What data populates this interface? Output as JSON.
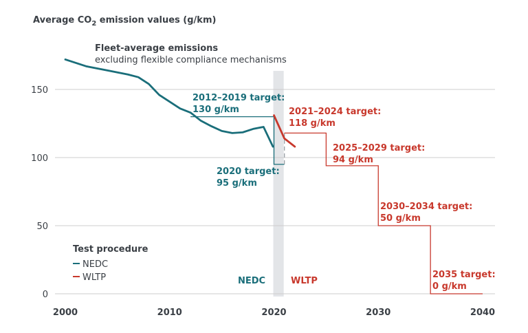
{
  "chart_data": {
    "type": "line",
    "title": "Average CO",
    "title_sub": "2",
    "title_rest": " emission values (g/km)",
    "ylabel": "Average CO2 emission values (g/km)",
    "xlabel": "",
    "xlim": [
      2000,
      2040
    ],
    "ylim": [
      0,
      175
    ],
    "xticks": [
      2000,
      2010,
      2020,
      2030,
      2040
    ],
    "yticks": [
      0,
      50,
      100,
      150
    ],
    "grid": true,
    "note": {
      "heading": "Fleet-average emissions",
      "subheading": "excluding flexible compliance mechanisms"
    },
    "colors": {
      "NEDC": "#1a6e7a",
      "WLTP": "#c8382c",
      "band": "#e3e5e8",
      "grid": "#cccccc",
      "text": "#3a3f45"
    },
    "transition_band": [
      2020,
      2021
    ],
    "series": [
      {
        "name": "NEDC",
        "x": [
          2000,
          2002,
          2004,
          2006,
          2007,
          2008,
          2009,
          2010,
          2011,
          2012,
          2013,
          2014,
          2015,
          2016,
          2017,
          2018,
          2019,
          2019.9
        ],
        "values": [
          172,
          167,
          164,
          161,
          159,
          154,
          146,
          141,
          136,
          133,
          127,
          123,
          119.5,
          118,
          118.5,
          121,
          122.5,
          108
        ]
      },
      {
        "name": "WLTP",
        "x": [
          2020,
          2021,
          2022
        ],
        "values": [
          131,
          114,
          108
        ]
      }
    ],
    "targets": [
      {
        "label_line1": "2012–2019 target:",
        "label_line2": "130 g/km",
        "from": 2012,
        "to": 2020,
        "value": 130,
        "procedure": "NEDC"
      },
      {
        "label_line1": "2020 target:",
        "label_line2": "95 g/km",
        "from": 2020,
        "to": 2021,
        "value": 95,
        "procedure": "NEDC"
      },
      {
        "label_line1": "2021–2024 target:",
        "label_line2": "118 g/km",
        "from": 2021,
        "to": 2025,
        "value": 118,
        "procedure": "WLTP"
      },
      {
        "label_line1": "2025–2029 target:",
        "label_line2": "94 g/km",
        "from": 2025,
        "to": 2030,
        "value": 94,
        "procedure": "WLTP"
      },
      {
        "label_line1": "2030–2034 target:",
        "label_line2": "50 g/km",
        "from": 2030,
        "to": 2035,
        "value": 50,
        "procedure": "WLTP"
      },
      {
        "label_line1": "2035 target:",
        "label_line2": "0 g/km",
        "from": 2035,
        "to": 2040,
        "value": 0,
        "procedure": "WLTP"
      }
    ],
    "region_labels": {
      "left": "NEDC",
      "right": "WLTP"
    },
    "legend": {
      "title": "Test procedure",
      "placement": "bottom-left",
      "entries": [
        "NEDC",
        "WLTP"
      ]
    }
  }
}
